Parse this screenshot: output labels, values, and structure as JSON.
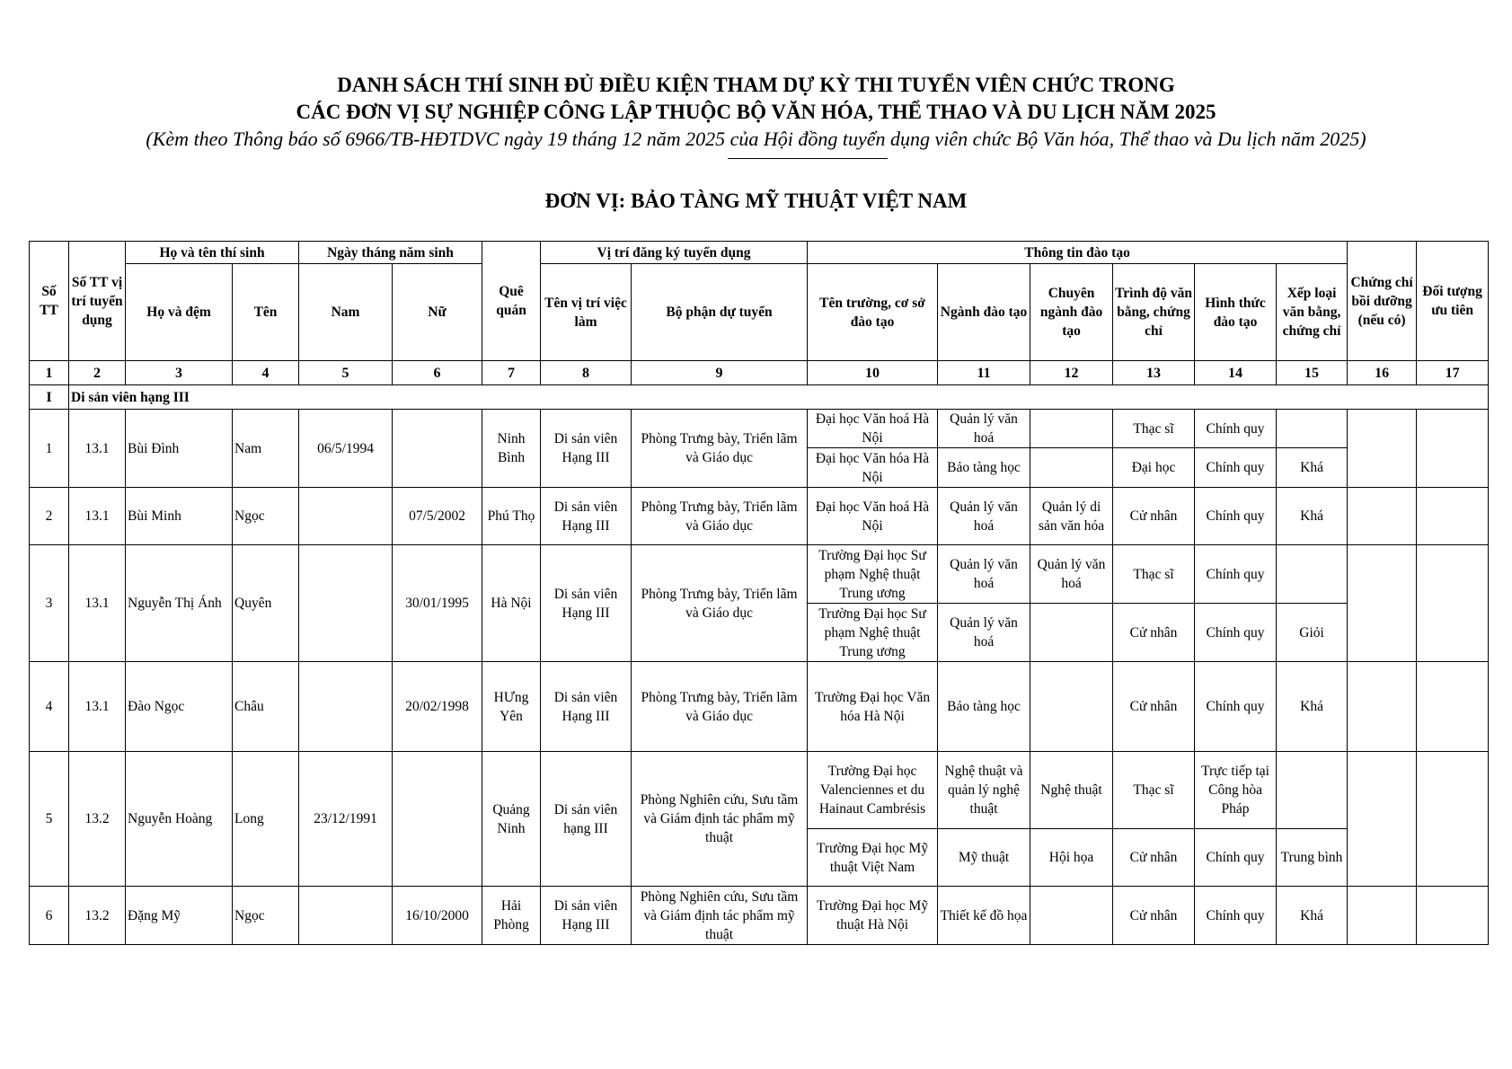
{
  "document": {
    "title_line1": "DANH SÁCH THÍ SINH ĐỦ ĐIỀU KIỆN THAM DỰ KỲ THI TUYỂN VIÊN CHỨC TRONG",
    "title_line2": "CÁC ĐƠN VỊ SỰ NGHIỆP CÔNG LẬP THUỘC BỘ VĂN HÓA, THỂ THAO VÀ DU LỊCH NĂM 2025",
    "subtitle": "(Kèm theo Thông báo số 6966/TB-HĐTDVC ngày 19 tháng 12 năm 2025 của Hội đồng tuyển dụng viên chức Bộ Văn hóa, Thể thao và Du lịch năm 2025)",
    "unit": "ĐƠN VỊ: BẢO TÀNG MỸ THUẬT VIỆT NAM"
  },
  "table": {
    "headers": {
      "stt": "Số TT",
      "position_no": "Số TT vị trí tuyển dụng",
      "full_name": "Họ và tên thí sinh",
      "ho_dem": "Họ và đệm",
      "ten": "Tên",
      "dob": "Ngày tháng năm sinh",
      "nam": "Nam",
      "nu": "Nữ",
      "que_quan": "Quê quán",
      "position": "Vị trí đăng ký tuyển dụng",
      "vi_tri": "Tên vị trí việc làm",
      "bo_phan": "Bộ phận dự tuyển",
      "training": "Thông tin đào tạo",
      "truong": "Tên trường, cơ sở đào tạo",
      "nganh": "Ngành đào tạo",
      "chuyen_nganh": "Chuyên ngành đào tạo",
      "trinh_do": "Trình độ văn bằng, chứng chỉ",
      "hinh_thuc": "Hình thức đào tạo",
      "xep_loai": "Xếp loại văn bằng, chứng chỉ",
      "chung_chi": "Chứng chỉ bồi dưỡng (nếu có)",
      "doi_tuong": "Đối tượng ưu tiên"
    },
    "column_numbers": [
      "1",
      "2",
      "3",
      "4",
      "5",
      "6",
      "7",
      "8",
      "9",
      "10",
      "11",
      "12",
      "13",
      "14",
      "15",
      "16",
      "17"
    ],
    "section": {
      "number": "I",
      "label": "Di sản viên hạng III"
    },
    "rows": [
      {
        "stt": "1",
        "code": "13.1",
        "ho_dem": "Bùi Đình",
        "ten": "Nam",
        "nam": "06/5/1994",
        "nu": "",
        "que_quan": "Ninh Bình",
        "vi_tri": "Di sản viên Hạng III",
        "bo_phan": "Phòng Trưng bày, Triển lãm và Giáo dục",
        "chung_chi": "",
        "doi_tuong": "",
        "dao_tao": [
          {
            "truong": "Đại học Văn hoá Hà Nội",
            "nganh": "Quản lý văn hoá",
            "chuyen_nganh": "",
            "trinh_do": "Thạc sĩ",
            "hinh_thuc": "Chính quy",
            "xep_loai": ""
          },
          {
            "truong": "Đại học Văn hóa Hà Nội",
            "nganh": "Bảo tàng học",
            "chuyen_nganh": "",
            "trinh_do": "Đại học",
            "hinh_thuc": "Chính quy",
            "xep_loai": "Khá"
          }
        ]
      },
      {
        "stt": "2",
        "code": "13.1",
        "ho_dem": "Bùi Minh",
        "ten": "Ngọc",
        "nam": "",
        "nu": "07/5/2002",
        "que_quan": "Phú Thọ",
        "vi_tri": "Di sản viên Hạng III",
        "bo_phan": "Phòng Trưng bày, Triển lãm và Giáo dục",
        "chung_chi": "",
        "doi_tuong": "",
        "dao_tao": [
          {
            "truong": "Đại học Văn hoá Hà Nội",
            "nganh": "Quản lý văn hoá",
            "chuyen_nganh": "Quản lý di sản văn hóa",
            "trinh_do": "Cử nhân",
            "hinh_thuc": "Chính quy",
            "xep_loai": "Khá"
          }
        ]
      },
      {
        "stt": "3",
        "code": "13.1",
        "ho_dem": "Nguyễn Thị Ánh",
        "ten": "Quyên",
        "nam": "",
        "nu": "30/01/1995",
        "que_quan": "Hà Nội",
        "vi_tri": "Di sản viên Hạng III",
        "bo_phan": "Phòng Trưng bày, Triển lãm và Giáo dục",
        "chung_chi": "",
        "doi_tuong": "",
        "dao_tao": [
          {
            "truong": "Trường Đại học Sư phạm Nghệ thuật Trung ương",
            "nganh": "Quản lý văn hoá",
            "chuyen_nganh": "Quản lý văn hoá",
            "trinh_do": "Thạc sĩ",
            "hinh_thuc": "Chính quy",
            "xep_loai": ""
          },
          {
            "truong": "Trường Đại học Sư phạm Nghệ thuật Trung ương",
            "nganh": "Quản lý văn hoá",
            "chuyen_nganh": "",
            "trinh_do": "Cử nhân",
            "hinh_thuc": "Chính quy",
            "xep_loai": "Giỏi"
          }
        ]
      },
      {
        "stt": "4",
        "code": "13.1",
        "ho_dem": " Đào Ngọc",
        "ten": "Châu",
        "nam": "",
        "nu": "20/02/1998",
        "que_quan": "HƯng Yên",
        "vi_tri": "Di sản viên Hạng III",
        "bo_phan": "Phòng Trưng bày, Triển lãm và Giáo dục",
        "chung_chi": "",
        "doi_tuong": "",
        "dao_tao": [
          {
            "truong": "Trường Đại học Văn hóa Hà Nội",
            "nganh": "Bảo tàng học",
            "chuyen_nganh": "",
            "trinh_do": "Cử nhân",
            "hinh_thuc": "Chính quy",
            "xep_loai": "Khá"
          }
        ]
      },
      {
        "stt": "5",
        "code": "13.2",
        "ho_dem": "Nguyễn Hoàng",
        "ten": "Long",
        "nam": "23/12/1991",
        "nu": "",
        "que_quan": "Quảng Ninh",
        "vi_tri": "Di sản viên hạng III",
        "bo_phan": "Phòng Nghiên cứu, Sưu tầm và Giám định tác phẩm mỹ thuật",
        "chung_chi": "",
        "doi_tuong": "",
        "dao_tao": [
          {
            "truong": "Trường Đại học Valenciennes et du Hainaut Cambrésis",
            "nganh": "Nghệ thuật và quản lý nghệ thuật",
            "chuyen_nganh": "Nghệ thuật",
            "trinh_do": "Thạc sĩ",
            "hinh_thuc": "Trực tiếp tại Công hòa Pháp",
            "xep_loai": ""
          },
          {
            "truong": "Trường Đại học Mỹ thuật Việt Nam",
            "nganh": "Mỹ thuật",
            "chuyen_nganh": "Hội họa",
            "trinh_do": "Cử nhân",
            "hinh_thuc": "Chính quy",
            "xep_loai": "Trung bình"
          }
        ]
      },
      {
        "stt": "6",
        "code": "13.2",
        "ho_dem": " Đặng Mỹ",
        "ten": "Ngọc",
        "nam": "",
        "nu": "16/10/2000",
        "que_quan": "Hải Phòng",
        "vi_tri": "Di sản viên Hạng III",
        "bo_phan": "Phòng Nghiên cứu, Sưu tầm và Giám định tác phẩm mỹ thuật",
        "chung_chi": "",
        "doi_tuong": "",
        "dao_tao": [
          {
            "truong": "Trường Đại học Mỹ thuật Hà Nội",
            "nganh": "Thiết kế đồ họa",
            "chuyen_nganh": "",
            "trinh_do": "Cử nhân",
            "hinh_thuc": "Chính quy",
            "xep_loai": "Khá"
          }
        ]
      }
    ]
  }
}
